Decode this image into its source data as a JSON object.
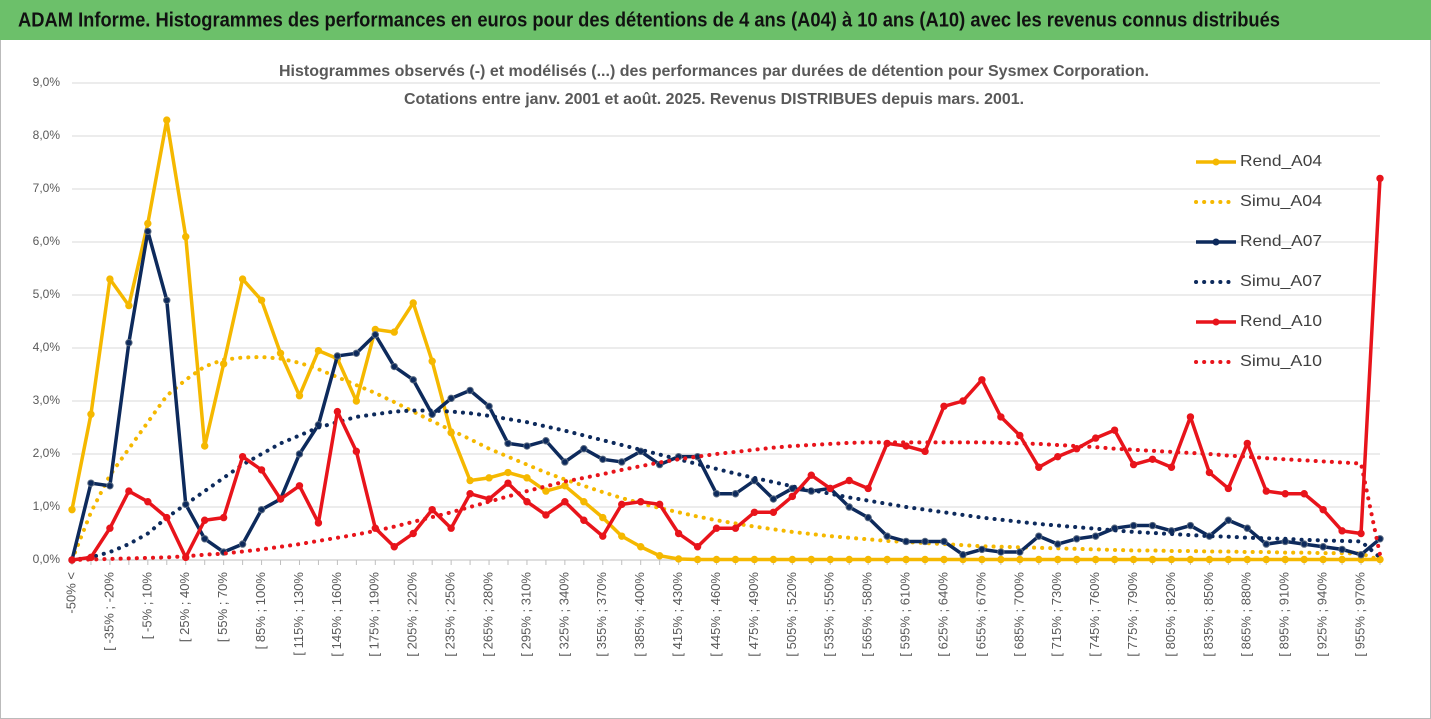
{
  "header": {
    "title": "ADAM Informe. Histogrammes des performances en euros pour des détentions de 4 ans (A04) à 10 ans (A10) avec les revenus connus distribués"
  },
  "chart_data": {
    "type": "line",
    "title": "Histogrammes observés (-) et modélisés (...) des performances par durées de détention pour Sysmex Corporation.",
    "subtitle": "Cotations entre janv. 2001 et août. 2025. Revenus DISTRIBUES depuis mars. 2001.",
    "categories": [
      "-50% <",
      null,
      "[ -35% ; -20%",
      null,
      "[ -5% ; 10%",
      null,
      "[ 25% ; 40%",
      null,
      "[ 55% ; 70%",
      null,
      "[ 85% ; 100%",
      null,
      "[ 115% ; 130%",
      null,
      "[ 145% ; 160%",
      null,
      "[ 175% ; 190%",
      null,
      "[ 205% ; 220%",
      null,
      "[ 235% ; 250%",
      null,
      "[ 265% ; 280%",
      null,
      "[ 295% ; 310%",
      null,
      "[ 325% ; 340%",
      null,
      "[ 355% ; 370%",
      null,
      "[ 385% ; 400%",
      null,
      "[ 415% ; 430%",
      null,
      "[ 445% ; 460%",
      null,
      "[ 475% ; 490%",
      null,
      "[ 505% ; 520%",
      null,
      "[ 535% ; 550%",
      null,
      "[ 565% ; 580%",
      null,
      "[ 595% ; 610%",
      null,
      "[ 625% ; 640%",
      null,
      "[ 655% ; 670%",
      null,
      "[ 685% ; 700%",
      null,
      "[ 715% ; 730%",
      null,
      "[ 745% ; 760%",
      null,
      "[ 775% ; 790%",
      null,
      "[ 805% ; 820%",
      null,
      "[ 835% ; 850%",
      null,
      "[ 865% ; 880%",
      null,
      "[ 895% ; 910%",
      null,
      "[ 925% ; 940%",
      null,
      "[ 955% ; 970%",
      null
    ],
    "ylim": [
      0,
      9
    ],
    "yticks": [
      {
        "value": 0,
        "label": "0,0%"
      },
      {
        "value": 1,
        "label": "1,0%"
      },
      {
        "value": 2,
        "label": "2,0%"
      },
      {
        "value": 3,
        "label": "3,0%"
      },
      {
        "value": 4,
        "label": "4,0%"
      },
      {
        "value": 5,
        "label": "5,0%"
      },
      {
        "value": 6,
        "label": "6,0%"
      },
      {
        "value": 7,
        "label": "7,0%"
      },
      {
        "value": 8,
        "label": "8,0%"
      },
      {
        "value": 9,
        "label": "9,0%"
      }
    ],
    "grid": true,
    "legend": "right",
    "series": [
      {
        "name": "Rend_A04",
        "color": "#f5b800",
        "style": "solid",
        "values": [
          0.95,
          2.75,
          5.3,
          4.8,
          6.35,
          8.3,
          6.1,
          2.15,
          3.7,
          5.3,
          4.9,
          3.9,
          3.1,
          3.95,
          3.8,
          3.0,
          4.35,
          4.3,
          4.85,
          3.75,
          2.4,
          1.5,
          1.55,
          1.65,
          1.55,
          1.3,
          1.4,
          1.1,
          0.8,
          0.45,
          0.25,
          0.08,
          0.02,
          0.01,
          0.01,
          0.01,
          0.01,
          0.01,
          0.01,
          0.01,
          0.01,
          0.01,
          0.01,
          0.01,
          0.01,
          0.01,
          0.01,
          0.01,
          0.01,
          0.01,
          0.01,
          0.01,
          0.01,
          0.01,
          0.01,
          0.01,
          0.01,
          0.01,
          0.01,
          0.01,
          0.01,
          0.01,
          0.01,
          0.01,
          0.01,
          0.01,
          0.01,
          0.01,
          0.01,
          0.01
        ]
      },
      {
        "name": "Simu_A04",
        "color": "#f5b800",
        "style": "dotted",
        "values": [
          0,
          0.9,
          1.6,
          2.1,
          2.6,
          3.1,
          3.4,
          3.65,
          3.78,
          3.82,
          3.83,
          3.8,
          3.72,
          3.6,
          3.45,
          3.3,
          3.15,
          2.98,
          2.8,
          2.62,
          2.45,
          2.28,
          2.1,
          1.95,
          1.8,
          1.65,
          1.52,
          1.4,
          1.28,
          1.17,
          1.07,
          0.98,
          0.9,
          0.82,
          0.75,
          0.69,
          0.63,
          0.58,
          0.53,
          0.49,
          0.45,
          0.42,
          0.39,
          0.36,
          0.34,
          0.32,
          0.3,
          0.28,
          0.26,
          0.25,
          0.24,
          0.23,
          0.22,
          0.21,
          0.2,
          0.19,
          0.18,
          0.18,
          0.17,
          0.17,
          0.16,
          0.16,
          0.15,
          0.15,
          0.14,
          0.14,
          0.13,
          0.13,
          0.12,
          0
        ]
      },
      {
        "name": "Rend_A07",
        "color": "#0d2a5c",
        "style": "solid",
        "values": [
          0,
          1.45,
          1.4,
          4.1,
          6.2,
          4.9,
          1.05,
          0.4,
          0.15,
          0.3,
          0.95,
          1.15,
          2.0,
          2.55,
          3.85,
          3.9,
          4.25,
          3.65,
          3.4,
          2.75,
          3.05,
          3.2,
          2.9,
          2.2,
          2.15,
          2.25,
          1.85,
          2.1,
          1.9,
          1.85,
          2.05,
          1.8,
          1.95,
          1.95,
          1.25,
          1.25,
          1.5,
          1.15,
          1.35,
          1.3,
          1.35,
          1.0,
          0.8,
          0.45,
          0.35,
          0.35,
          0.35,
          0.1,
          0.2,
          0.15,
          0.15,
          0.45,
          0.3,
          0.4,
          0.45,
          0.6,
          0.65,
          0.65,
          0.55,
          0.65,
          0.45,
          0.75,
          0.6,
          0.3,
          0.35,
          0.3,
          0.25,
          0.2,
          0.1,
          0.4
        ]
      },
      {
        "name": "Simu_A07",
        "color": "#0d2a5c",
        "style": "dotted",
        "values": [
          0,
          0.05,
          0.15,
          0.3,
          0.5,
          0.8,
          1.05,
          1.3,
          1.55,
          1.8,
          2.0,
          2.2,
          2.35,
          2.5,
          2.6,
          2.7,
          2.75,
          2.8,
          2.82,
          2.82,
          2.8,
          2.77,
          2.72,
          2.66,
          2.6,
          2.52,
          2.44,
          2.35,
          2.26,
          2.17,
          2.08,
          1.99,
          1.9,
          1.81,
          1.72,
          1.63,
          1.55,
          1.47,
          1.39,
          1.32,
          1.25,
          1.18,
          1.12,
          1.06,
          1.0,
          0.95,
          0.9,
          0.85,
          0.8,
          0.76,
          0.72,
          0.68,
          0.65,
          0.62,
          0.59,
          0.56,
          0.53,
          0.51,
          0.49,
          0.47,
          0.45,
          0.44,
          0.42,
          0.41,
          0.4,
          0.38,
          0.37,
          0.36,
          0.35,
          0.05
        ]
      },
      {
        "name": "Rend_A10",
        "color": "#e8141b",
        "style": "solid",
        "values": [
          0,
          0.05,
          0.6,
          1.3,
          1.1,
          0.8,
          0.05,
          0.75,
          0.8,
          1.95,
          1.7,
          1.15,
          1.4,
          0.7,
          2.8,
          2.05,
          0.6,
          0.25,
          0.5,
          0.95,
          0.6,
          1.25,
          1.15,
          1.45,
          1.1,
          0.85,
          1.1,
          0.75,
          0.45,
          1.05,
          1.1,
          1.05,
          0.5,
          0.25,
          0.6,
          0.6,
          0.9,
          0.9,
          1.2,
          1.6,
          1.35,
          1.5,
          1.35,
          2.2,
          2.15,
          2.05,
          2.9,
          3.0,
          3.4,
          2.7,
          2.35,
          1.75,
          1.95,
          2.1,
          2.3,
          2.45,
          1.8,
          1.9,
          1.75,
          2.7,
          1.65,
          1.35,
          2.2,
          1.3,
          1.25,
          1.25,
          0.95,
          0.55,
          0.5,
          7.2
        ]
      },
      {
        "name": "Simu_A10",
        "color": "#e8141b",
        "style": "dotted",
        "values": [
          0,
          0.01,
          0.02,
          0.03,
          0.04,
          0.05,
          0.07,
          0.1,
          0.12,
          0.16,
          0.2,
          0.25,
          0.3,
          0.36,
          0.42,
          0.48,
          0.55,
          0.63,
          0.72,
          0.81,
          0.9,
          1.0,
          1.1,
          1.2,
          1.3,
          1.39,
          1.48,
          1.55,
          1.62,
          1.7,
          1.77,
          1.84,
          1.9,
          1.95,
          2.0,
          2.04,
          2.08,
          2.12,
          2.15,
          2.17,
          2.19,
          2.21,
          2.22,
          2.22,
          2.22,
          2.22,
          2.22,
          2.22,
          2.22,
          2.21,
          2.2,
          2.19,
          2.17,
          2.15,
          2.13,
          2.1,
          2.08,
          2.06,
          2.04,
          2.02,
          2.0,
          1.97,
          1.95,
          1.92,
          1.9,
          1.88,
          1.86,
          1.84,
          1.82,
          0.1
        ]
      }
    ]
  }
}
